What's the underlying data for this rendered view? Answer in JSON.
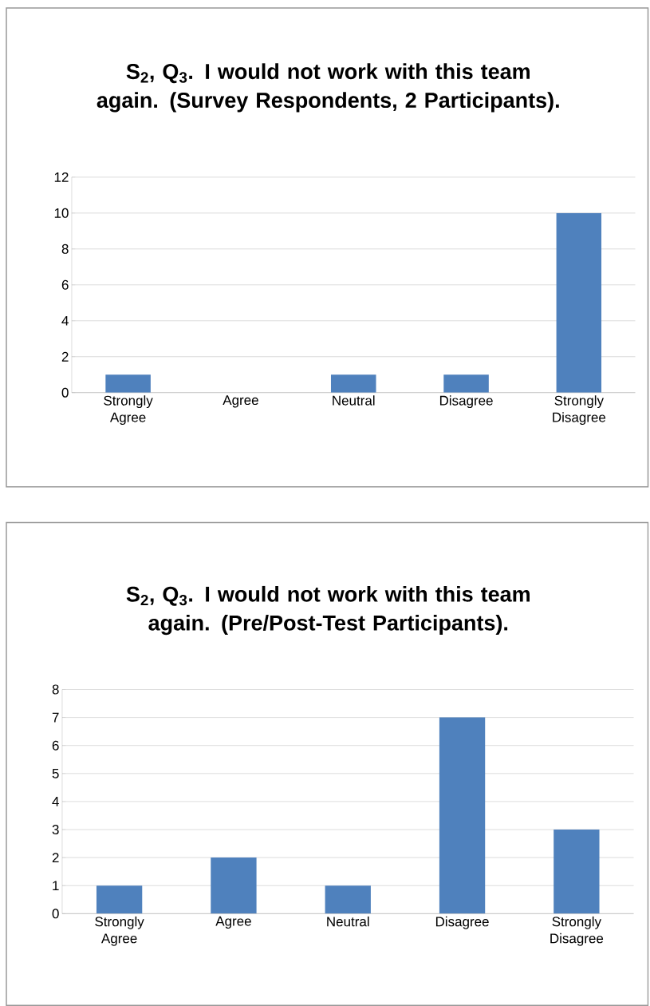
{
  "chart_data": [
    {
      "type": "bar",
      "title": "S$_{2}$, Q$_{3}$. I would not work with this team again. (Survey Respondents, 2 Participants).",
      "categories": [
        "Strongly Agree",
        "Agree",
        "Neutral",
        "Disagree",
        "Strongly Disagree"
      ],
      "values": [
        1,
        0,
        1,
        1,
        10
      ],
      "color": "#4f81bd",
      "ylim": [
        0,
        12
      ],
      "yticks": [
        0,
        2,
        4,
        6,
        8,
        10,
        12
      ],
      "grid": "y"
    },
    {
      "type": "bar",
      "title": "S$_{2}$, Q$_{3}$. I would not work with this team again. (Pre/Post-Test Participants).",
      "categories": [
        "Strongly Agree",
        "Agree",
        "Neutral",
        "Disagree",
        "Strongly Disagree"
      ],
      "values": [
        1,
        2,
        1,
        7,
        3
      ],
      "color": "#4f81bd",
      "ylim": [
        0,
        8
      ],
      "yticks": [
        0,
        1,
        2,
        3,
        4,
        5,
        6,
        7,
        8
      ],
      "grid": "y"
    }
  ]
}
